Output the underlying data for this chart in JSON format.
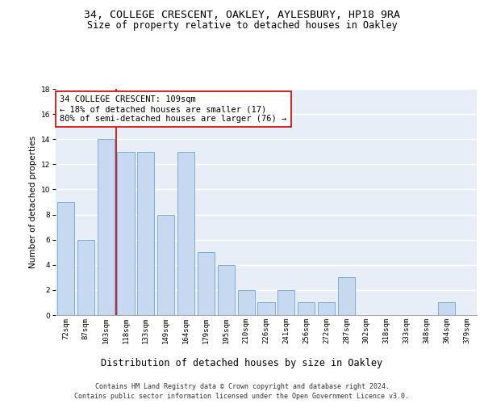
{
  "title1": "34, COLLEGE CRESCENT, OAKLEY, AYLESBURY, HP18 9RA",
  "title2": "Size of property relative to detached houses in Oakley",
  "xlabel": "Distribution of detached houses by size in Oakley",
  "ylabel": "Number of detached properties",
  "categories": [
    "72sqm",
    "87sqm",
    "103sqm",
    "118sqm",
    "133sqm",
    "149sqm",
    "164sqm",
    "179sqm",
    "195sqm",
    "210sqm",
    "226sqm",
    "241sqm",
    "256sqm",
    "272sqm",
    "287sqm",
    "302sqm",
    "318sqm",
    "333sqm",
    "348sqm",
    "364sqm",
    "379sqm"
  ],
  "values": [
    9,
    6,
    14,
    13,
    13,
    8,
    13,
    5,
    4,
    2,
    1,
    2,
    1,
    1,
    3,
    0,
    0,
    0,
    0,
    1,
    0
  ],
  "bar_color": "#c6d9f0",
  "bar_edge_color": "#7bafd4",
  "subject_line_color": "#cc0000",
  "annotation_line1": "34 COLLEGE CRESCENT: 109sqm",
  "annotation_line2": "← 18% of detached houses are smaller (17)",
  "annotation_line3": "80% of semi-detached houses are larger (76) →",
  "annotation_box_color": "#cc0000",
  "ylim": [
    0,
    18
  ],
  "yticks": [
    0,
    2,
    4,
    6,
    8,
    10,
    12,
    14,
    16,
    18
  ],
  "bg_color": "#e8eef8",
  "grid_color": "#ffffff",
  "footer_line1": "Contains HM Land Registry data © Crown copyright and database right 2024.",
  "footer_line2": "Contains public sector information licensed under the Open Government Licence v3.0.",
  "title1_fontsize": 9.5,
  "title2_fontsize": 8.5,
  "xlabel_fontsize": 8.5,
  "ylabel_fontsize": 7.5,
  "tick_fontsize": 6.5,
  "annotation_fontsize": 7.5,
  "footer_fontsize": 6.0
}
